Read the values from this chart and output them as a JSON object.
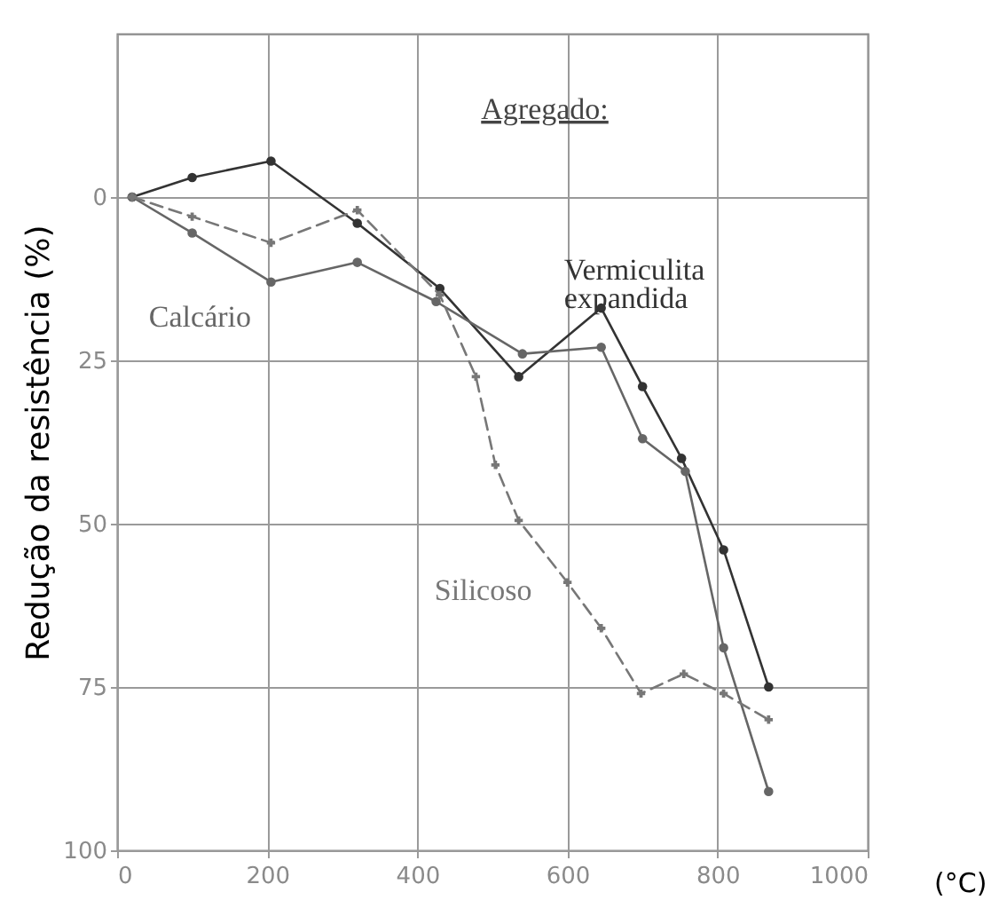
{
  "chart_data": {
    "type": "line",
    "ylabel": "Redução da resistência (%)",
    "xlabel": "(°C)",
    "legend_title": "Agregado:",
    "xlim": [
      0,
      1000
    ],
    "xticks": [
      0,
      200,
      400,
      600,
      800,
      1000
    ],
    "ylim": [
      100,
      -25
    ],
    "yticks": [
      0,
      25,
      50,
      75,
      100
    ],
    "grid": true,
    "series": [
      {
        "name": "Vermiculita expandida",
        "color": "#333333",
        "marker": "circle",
        "line_style": "solid",
        "x": [
          20,
          100,
          205,
          320,
          430,
          535,
          645,
          700,
          752,
          808,
          868
        ],
        "values": [
          0,
          -3,
          -5.5,
          4,
          14,
          27.5,
          17,
          29,
          40,
          54,
          75
        ]
      },
      {
        "name": "Calcário",
        "color": "#666666",
        "marker": "circle",
        "line_style": "solid",
        "x": [
          20,
          100,
          205,
          320,
          425,
          540,
          645,
          700,
          757,
          808,
          868
        ],
        "values": [
          0,
          5.5,
          13,
          10,
          16,
          24,
          23,
          37,
          42,
          69,
          91
        ]
      },
      {
        "name": "Silicoso",
        "color": "#777777",
        "marker": "cross",
        "line_style": "dashed",
        "x": [
          20,
          100,
          205,
          320,
          430,
          478,
          504,
          535,
          600,
          645,
          698,
          755,
          808,
          868
        ],
        "values": [
          0,
          3,
          7,
          2,
          15,
          27.5,
          41,
          49.5,
          59,
          66,
          76,
          73,
          76,
          80
        ]
      }
    ]
  }
}
